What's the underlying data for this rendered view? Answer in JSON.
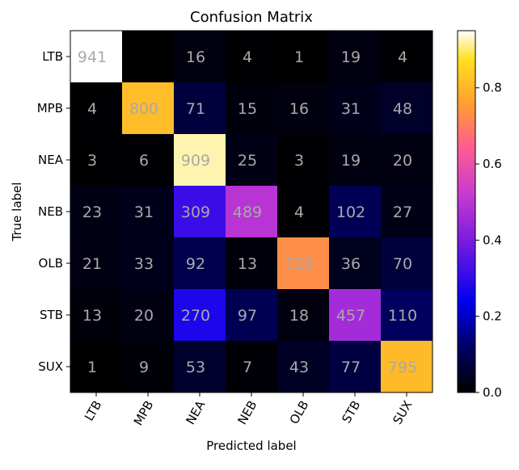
{
  "chart_data": {
    "type": "heatmap",
    "title": "Confusion Matrix",
    "xlabel": "Predicted label",
    "ylabel": "True label",
    "row_labels": [
      "LTB",
      "MPB",
      "NEA",
      "NEB",
      "OLB",
      "STB",
      "SUX"
    ],
    "col_labels": [
      "LTB",
      "MPB",
      "NEA",
      "NEB",
      "OLB",
      "STB",
      "SUX"
    ],
    "values": [
      [
        941,
        0,
        16,
        4,
        1,
        19,
        4
      ],
      [
        4,
        800,
        71,
        15,
        16,
        31,
        48
      ],
      [
        3,
        6,
        909,
        25,
        3,
        19,
        20
      ],
      [
        23,
        31,
        309,
        489,
        4,
        102,
        27
      ],
      [
        21,
        33,
        92,
        13,
        720,
        36,
        70
      ],
      [
        13,
        20,
        270,
        97,
        18,
        457,
        110
      ],
      [
        1,
        9,
        53,
        7,
        43,
        77,
        795
      ]
    ],
    "shown_labels": [
      [
        "941",
        "",
        "16",
        "4",
        "1",
        "19",
        "4"
      ],
      [
        "4",
        "800",
        "71",
        "15",
        "16",
        "31",
        "48"
      ],
      [
        "3",
        "6",
        "909",
        "25",
        "3",
        "19",
        "20"
      ],
      [
        "23",
        "31",
        "309",
        "489",
        "4",
        "102",
        "27"
      ],
      [
        "21",
        "33",
        "92",
        "13",
        "720",
        "36",
        "70"
      ],
      [
        "13",
        "20",
        "270",
        "97",
        "18",
        "457",
        "110"
      ],
      [
        "1",
        "9",
        "53",
        "7",
        "43",
        "77",
        "795"
      ]
    ],
    "colormap": "gnuplot2",
    "colorbar": {
      "range": [
        0,
        0.95
      ],
      "ticks": [
        "0.0",
        "0.2",
        "0.4",
        "0.6",
        "0.8"
      ]
    },
    "cell_text_color": "#a9a9a9",
    "grid": false
  }
}
